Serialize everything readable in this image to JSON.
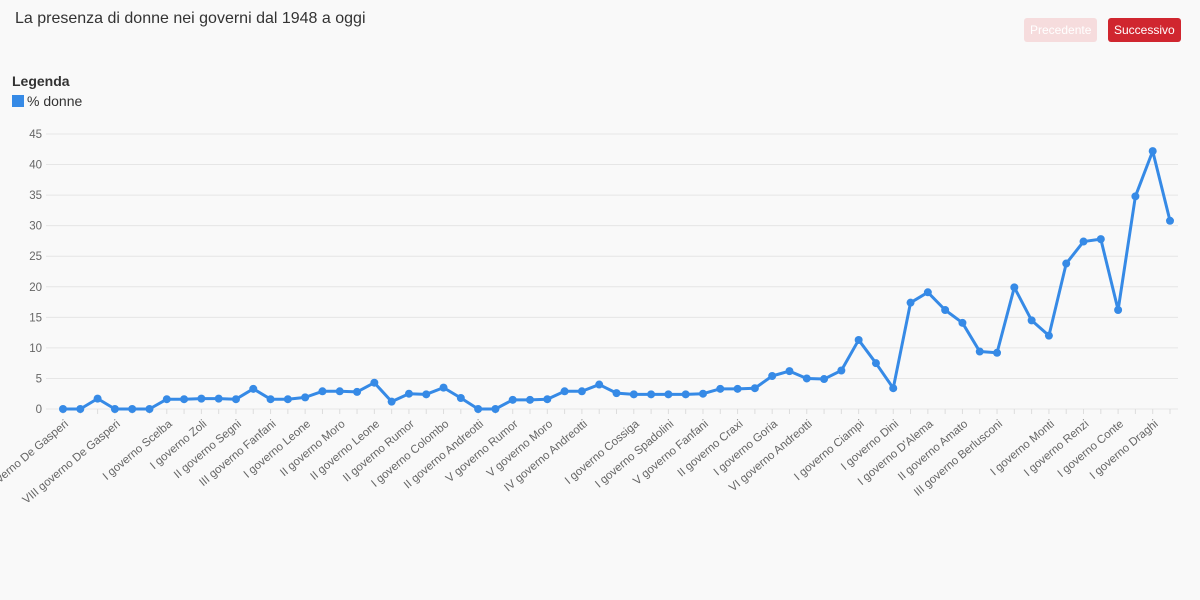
{
  "header": {
    "title": "La presenza di donne nei governi dal 1948 a oggi"
  },
  "buttons": {
    "previous": "Precedente",
    "next": "Successivo"
  },
  "chart_data": {
    "type": "line",
    "legend_title": "Legenda",
    "categories": [
      "V governo De Gasperi",
      null,
      null,
      "VIII governo De Gasperi",
      null,
      null,
      "I governo Scelba",
      null,
      "I governo Zoli",
      null,
      "II governo Segni",
      null,
      "III governo Fanfani",
      null,
      "I governo Leone",
      null,
      "II governo Moro",
      null,
      "II governo Leone",
      null,
      "II governo Rumor",
      null,
      "I governo Colombo",
      null,
      "II governo Andreotti",
      null,
      "V governo Rumor",
      null,
      "V governo Moro",
      null,
      "IV governo Andreotti",
      null,
      null,
      "I governo Cossiga",
      null,
      "I governo Spadolini",
      null,
      "V governo Fanfani",
      null,
      "II governo Craxi",
      null,
      "I governo Goria",
      null,
      "VI governo Andreotti",
      null,
      null,
      "I governo Ciampi",
      null,
      "I governo Dini",
      null,
      "I governo D'Alema",
      null,
      "II governo Amato",
      null,
      "III governo Berlusconi",
      null,
      null,
      "I governo Monti",
      null,
      "I governo Renzi",
      null,
      "I governo Conte",
      null,
      "I governo Draghi",
      null
    ],
    "series": [
      {
        "name": "% donne",
        "color": "#368ae6",
        "values": [
          0,
          0,
          1.7,
          0,
          0,
          0,
          1.6,
          1.6,
          1.7,
          1.7,
          1.6,
          3.3,
          1.6,
          1.6,
          1.9,
          2.9,
          2.9,
          2.8,
          4.3,
          1.2,
          2.5,
          2.4,
          3.5,
          1.8,
          0,
          0,
          1.5,
          1.5,
          1.6,
          2.9,
          2.9,
          4.0,
          2.6,
          2.4,
          2.4,
          2.4,
          2.4,
          2.5,
          3.3,
          3.3,
          3.4,
          5.4,
          6.2,
          5.0,
          4.9,
          6.3,
          11.3,
          7.5,
          3.4,
          17.4,
          19.1,
          16.2,
          14.1,
          9.4,
          9.2,
          19.9,
          14.5,
          12.0,
          23.8,
          27.4,
          27.8,
          16.2,
          34.8,
          42.2,
          30.8
        ]
      }
    ],
    "ylim": [
      0,
      45
    ],
    "yticks": [
      0,
      5,
      10,
      15,
      20,
      25,
      30,
      35,
      40,
      45
    ],
    "grid": true
  }
}
